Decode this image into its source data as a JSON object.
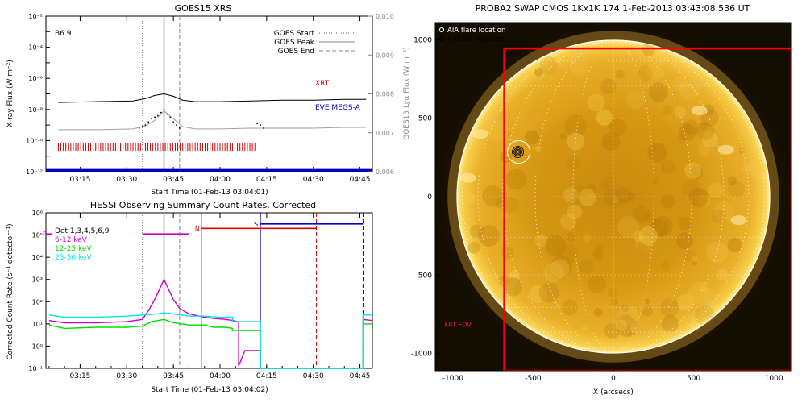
{
  "goes": {
    "chart_data": {
      "type": "line",
      "title": "GOES15 XRS",
      "class_label": "B6.9",
      "xlabel": "Start Time (01-Feb-13 03:04:01)",
      "ylabel": "X-ray Flux (W m⁻²)",
      "y2label": "GOES15 Lyα Flux (W m⁻²)",
      "xticks": [
        "03:15",
        "03:30",
        "03:45",
        "04:00",
        "04:15",
        "04:30",
        "04:45"
      ],
      "xtick_minutes": [
        195,
        210,
        225,
        240,
        255,
        270,
        285
      ],
      "xlim_minutes": [
        184,
        289
      ],
      "yscale": "log",
      "ylim_exp": [
        -12,
        -2
      ],
      "yticks": [
        "10⁻¹²",
        "10⁻¹⁰",
        "10⁻⁸",
        "10⁻⁶",
        "10⁻⁴",
        "10⁻²"
      ],
      "y2ticks": [
        "0.006",
        "0.007",
        "0.008",
        "0.009",
        "0.010"
      ],
      "y2lim": [
        0.006,
        0.01
      ],
      "legend_placement": "top-right",
      "legend": [
        {
          "name": "GOES Start",
          "style": "dotted",
          "color": "#808080"
        },
        {
          "name": "GOES Peak",
          "style": "solid",
          "color": "#a0a0a0"
        },
        {
          "name": "GOES End",
          "style": "dashed",
          "color": "#a0a0a0"
        }
      ],
      "annotations": [
        {
          "text": "XRT",
          "color": "#dd0000"
        },
        {
          "text": "EVE MEGS-A",
          "color": "#0000cc"
        }
      ],
      "event_lines_minutes": {
        "start": 215,
        "peak": 222,
        "end": 227
      },
      "series": [
        {
          "name": "long",
          "color": "#000000",
          "x": [
            188,
            200,
            212,
            216,
            219,
            222,
            225,
            228,
            232,
            240,
            250,
            260,
            270,
            280,
            287
          ],
          "y": [
            -7.55,
            -7.5,
            -7.45,
            -7.3,
            -7.1,
            -7.0,
            -7.15,
            -7.4,
            -7.5,
            -7.5,
            -7.45,
            -7.4,
            -7.4,
            -7.35,
            -7.35
          ]
        },
        {
          "name": "short",
          "color": "#a0a0a0",
          "x": [
            188,
            200,
            212,
            216,
            219,
            222,
            225,
            228,
            232,
            240,
            250,
            260,
            270,
            280,
            287
          ],
          "y": [
            -9.3,
            -9.3,
            -9.25,
            -9.05,
            -8.7,
            -8.1,
            -8.6,
            -9.1,
            -9.25,
            -9.25,
            -9.2,
            -9.2,
            -9.2,
            -9.15,
            -9.15
          ]
        },
        {
          "name": "short-points",
          "color": "#000000",
          "x": [
            214,
            215,
            216,
            217,
            218,
            219,
            220,
            221,
            222,
            223,
            224,
            225,
            226,
            227,
            252,
            253,
            254
          ],
          "y": [
            -9.2,
            -9.1,
            -9.0,
            -8.8,
            -8.6,
            -8.5,
            -8.4,
            -8.2,
            -8.0,
            -8.3,
            -8.5,
            -8.8,
            -9.0,
            -9.2,
            -8.9,
            -9.0,
            -9.2
          ]
        }
      ],
      "coverage_bars": [
        {
          "name": "XRT",
          "color": "#cc0000",
          "from": 188,
          "to": 252,
          "y": -10.4
        },
        {
          "name": "EVE MEGS-A",
          "color": "#0000cc",
          "from": 184,
          "to": 289,
          "y": -11.9
        }
      ]
    }
  },
  "hessi": {
    "chart_data": {
      "type": "line",
      "title": "HESSI Observing Summary Count Rates, Corrected",
      "xlabel": "Start Time (01-Feb-13 03:04:02)",
      "ylabel": "Corrected Count Rate (s⁻¹ detector⁻¹)",
      "xticks": [
        "03:15",
        "03:30",
        "03:45",
        "04:00",
        "04:15",
        "04:30",
        "04:45"
      ],
      "xtick_minutes": [
        195,
        210,
        225,
        240,
        255,
        270,
        285
      ],
      "xlim_minutes": [
        184,
        289
      ],
      "yscale": "log",
      "ylim_exp": [
        -1,
        6
      ],
      "yticks": [
        "10⁻¹",
        "10⁰",
        "10¹",
        "10²",
        "10³",
        "10⁴",
        "10⁵",
        "10⁶"
      ],
      "legend_placement": "top-left",
      "legend_header": "Det 1,3,4,5,6,9",
      "legend": [
        {
          "name": "6-12 keV",
          "color": "#cc00cc"
        },
        {
          "name": "12-25 keV",
          "color": "#00dd00"
        },
        {
          "name": "25-50 keV",
          "color": "#00e5e5"
        }
      ],
      "flags": [
        {
          "label": "F",
          "color": "#cc00cc",
          "from": 184,
          "to": 186,
          "y": 5.05
        },
        {
          "label": "",
          "color": "#cc00cc",
          "from": 215,
          "to": 230,
          "y": 5.05
        },
        {
          "label": "N",
          "color": "#dd0000",
          "from": 234,
          "to": 271,
          "y": 5.3
        },
        {
          "label": "S",
          "color": "#0000cc",
          "from": 253,
          "to": 286,
          "y": 5.5
        }
      ],
      "event_lines_minutes": {
        "start": 215,
        "peak": 222,
        "end": 227
      },
      "night_lines": [
        {
          "color": "#dd0000",
          "x": 234,
          "style": "solid"
        },
        {
          "color": "#dd0000",
          "x": 271,
          "style": "dashed"
        },
        {
          "color": "#0000cc",
          "x": 253,
          "style": "solid"
        },
        {
          "color": "#0000cc",
          "x": 286,
          "style": "dashed"
        }
      ],
      "series": [
        {
          "name": "6-12 keV",
          "color": "#cc00cc",
          "x": [
            185,
            190,
            200,
            210,
            215,
            217,
            219,
            221,
            222,
            223,
            225,
            227,
            230,
            235,
            238,
            242,
            246,
            246,
            248,
            252,
            253,
            253,
            286,
            286,
            289
          ],
          "y": [
            1.15,
            1.05,
            1.05,
            1.1,
            1.2,
            1.6,
            2.1,
            2.7,
            3.0,
            2.7,
            2.1,
            1.7,
            1.45,
            1.3,
            1.25,
            1.2,
            1.1,
            -0.9,
            -0.2,
            -0.2,
            -0.2,
            -1.0,
            -1.0,
            1.2,
            1.15
          ]
        },
        {
          "name": "12-25 keV",
          "color": "#00dd00",
          "x": [
            185,
            190,
            200,
            210,
            215,
            218,
            222,
            225,
            230,
            235,
            238,
            242,
            244,
            244,
            252,
            253,
            253,
            286,
            286,
            289
          ],
          "y": [
            0.95,
            0.8,
            0.85,
            0.85,
            0.9,
            1.1,
            1.2,
            1.05,
            0.95,
            0.95,
            0.85,
            0.85,
            0.8,
            0.7,
            0.7,
            0.7,
            -1.0,
            -1.0,
            1.0,
            1.0
          ]
        },
        {
          "name": "25-50 keV",
          "color": "#00e5e5",
          "x": [
            185,
            190,
            200,
            210,
            215,
            220,
            222,
            225,
            230,
            235,
            240,
            244,
            244,
            252,
            253,
            253,
            286,
            286,
            289
          ],
          "y": [
            1.4,
            1.3,
            1.3,
            1.35,
            1.4,
            1.45,
            1.5,
            1.45,
            1.35,
            1.35,
            1.3,
            1.3,
            1.1,
            1.1,
            1.1,
            -1.0,
            -1.0,
            1.4,
            1.4
          ]
        }
      ]
    }
  },
  "sun": {
    "chart_data": {
      "type": "image",
      "title": "PROBA2 SWAP CMOS 1Kx1K 174   1-Feb-2013 03:43:08.536 UT",
      "xlabel": "X (arcsecs)",
      "xticks": [
        "-1000",
        "-500",
        "0",
        "500",
        "1000"
      ],
      "xtick_values": [
        -1000,
        -500,
        0,
        500,
        1000
      ],
      "yticks": [
        "-1000",
        "-500",
        "0",
        "500",
        "1000"
      ],
      "ytick_values": [
        -1000,
        -500,
        0,
        500,
        1000
      ],
      "xlim": [
        -1110,
        1110
      ],
      "ylim": [
        -1110,
        1110
      ],
      "solar_radius_arcsec": 975,
      "legend_placement": "top-left",
      "legend": [
        {
          "name": "AIA flare location",
          "color": "#ffffff"
        },
        {
          "name": "RHESSI contours",
          "color": "#000000"
        }
      ],
      "fov_label": "XRT FOV",
      "fov_box": {
        "x0": -680,
        "x1": 1110,
        "y0": -1110,
        "y1": 945
      },
      "flare_location": {
        "x": -590,
        "y": 285
      }
    }
  }
}
